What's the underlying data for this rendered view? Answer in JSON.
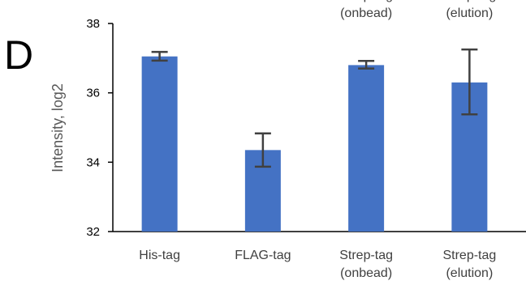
{
  "panel_label": "D",
  "chart_data": {
    "type": "bar",
    "title": "",
    "xlabel": "",
    "ylabel": "Intensity, log2",
    "ylim": [
      32,
      38
    ],
    "yticks": [
      "32",
      "34",
      "36",
      "38"
    ],
    "grid": false,
    "categories": [
      [
        "His-tag"
      ],
      [
        "FLAG-tag"
      ],
      [
        "Strep-tag",
        "(onbead)"
      ],
      [
        "Strep-tag",
        "(elution)"
      ]
    ],
    "values": [
      37.05,
      34.35,
      36.8,
      36.3
    ],
    "error_low": [
      36.93,
      33.87,
      36.7,
      35.38
    ],
    "error_high": [
      37.18,
      34.83,
      36.92,
      37.25
    ],
    "bar_color": "#4472C4",
    "error_color": "#404040"
  }
}
